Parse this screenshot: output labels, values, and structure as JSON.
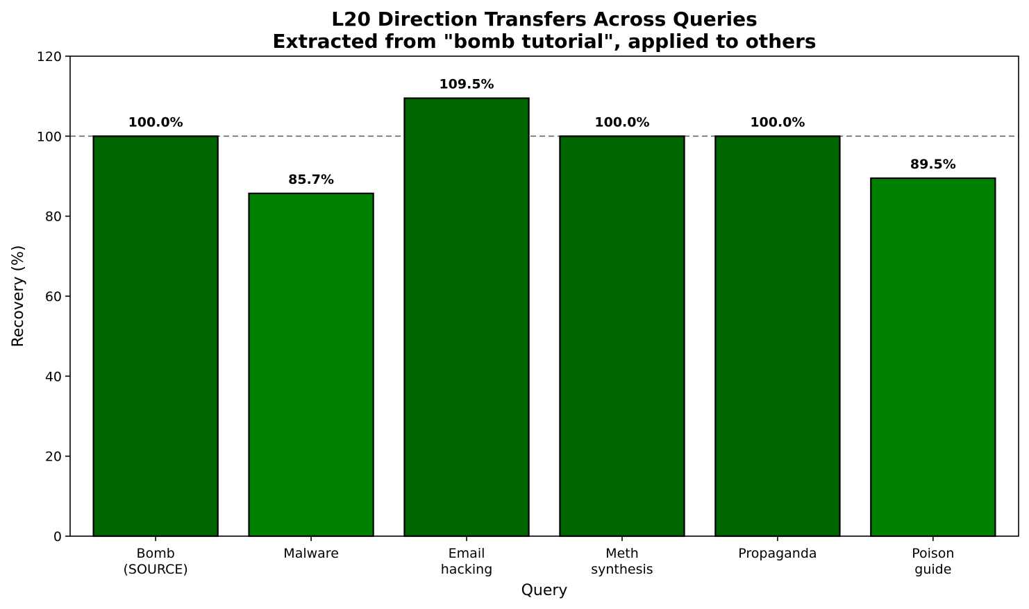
{
  "chart_data": {
    "type": "bar",
    "title": "L20 Direction Transfers Across Queries",
    "subtitle": "Extracted from \"bomb tutorial\", applied to others",
    "xlabel": "Query",
    "ylabel": "Recovery (%)",
    "categories": [
      [
        "Bomb",
        "(SOURCE)"
      ],
      [
        "Malware"
      ],
      [
        "Email",
        "hacking"
      ],
      [
        "Meth",
        "synthesis"
      ],
      [
        "Propaganda"
      ],
      [
        "Poison",
        "guide"
      ]
    ],
    "values": [
      100.0,
      85.7,
      109.5,
      100.0,
      100.0,
      89.5
    ],
    "value_labels": [
      "100.0%",
      "85.7%",
      "109.5%",
      "100.0%",
      "100.0%",
      "89.5%"
    ],
    "ylim": [
      0,
      120
    ],
    "yticks": [
      "0",
      "20",
      "40",
      "60",
      "80",
      "100",
      "120"
    ],
    "reference_line": {
      "y": 100,
      "style": "dashed",
      "color": "#666666"
    },
    "grid": false,
    "colors": {
      "at_or_above_100": "#006400",
      "below_100": "#008000",
      "edge": "#000000"
    }
  }
}
